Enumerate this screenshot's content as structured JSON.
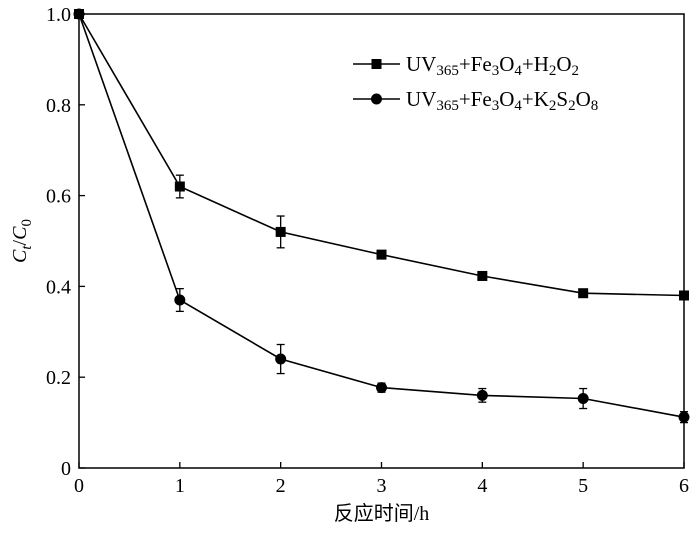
{
  "chart_data": {
    "type": "line",
    "title": "",
    "xlabel": "反应时间/h",
    "ylabel": {
      "main": "C",
      "sub1": "t",
      "sep": "/",
      "main2": "C",
      "sub2": "0"
    },
    "xlim": [
      0,
      6
    ],
    "ylim": [
      0,
      1.0
    ],
    "x_ticks": [
      0,
      1,
      2,
      3,
      4,
      5,
      6
    ],
    "x_tick_labels": [
      "0",
      "1",
      "2",
      "3",
      "4",
      "5",
      "6"
    ],
    "y_ticks": [
      0,
      0.2,
      0.4,
      0.6,
      0.8,
      1.0
    ],
    "y_tick_labels": [
      "0",
      "0.2",
      "0.4",
      "0.6",
      "0.8",
      "1.0"
    ],
    "grid": false,
    "legend_position": "top-right",
    "x": [
      0,
      1,
      2,
      3,
      4,
      5,
      6
    ],
    "series": [
      {
        "name": "UV365+Fe3O4+H2O2",
        "marker": "square",
        "values": [
          1.0,
          0.62,
          0.52,
          0.47,
          0.423,
          0.385,
          0.38
        ],
        "errors": [
          0.0,
          0.025,
          0.035,
          0.008,
          0.008,
          0.008,
          0.008
        ],
        "legend_parts": [
          {
            "t": "UV",
            "sub": false
          },
          {
            "t": "365",
            "sub": true
          },
          {
            "t": "+Fe",
            "sub": false
          },
          {
            "t": "3",
            "sub": true
          },
          {
            "t": "O",
            "sub": false
          },
          {
            "t": "4",
            "sub": true
          },
          {
            "t": "+H",
            "sub": false
          },
          {
            "t": "2",
            "sub": true
          },
          {
            "t": "O",
            "sub": false
          },
          {
            "t": "2",
            "sub": true
          }
        ]
      },
      {
        "name": "UV365+Fe3O4+K2S2O8",
        "marker": "circle",
        "values": [
          1.0,
          0.37,
          0.24,
          0.177,
          0.16,
          0.153,
          0.112
        ],
        "errors": [
          0.0,
          0.025,
          0.032,
          0.01,
          0.015,
          0.022,
          0.012
        ],
        "legend_parts": [
          {
            "t": "UV",
            "sub": false
          },
          {
            "t": "365",
            "sub": true
          },
          {
            "t": "+Fe",
            "sub": false
          },
          {
            "t": "3",
            "sub": true
          },
          {
            "t": "O",
            "sub": false
          },
          {
            "t": "4",
            "sub": true
          },
          {
            "t": "+K",
            "sub": false
          },
          {
            "t": "2",
            "sub": true
          },
          {
            "t": "S",
            "sub": false
          },
          {
            "t": "2",
            "sub": true
          },
          {
            "t": "O",
            "sub": false
          },
          {
            "t": "8",
            "sub": true
          }
        ]
      }
    ]
  }
}
